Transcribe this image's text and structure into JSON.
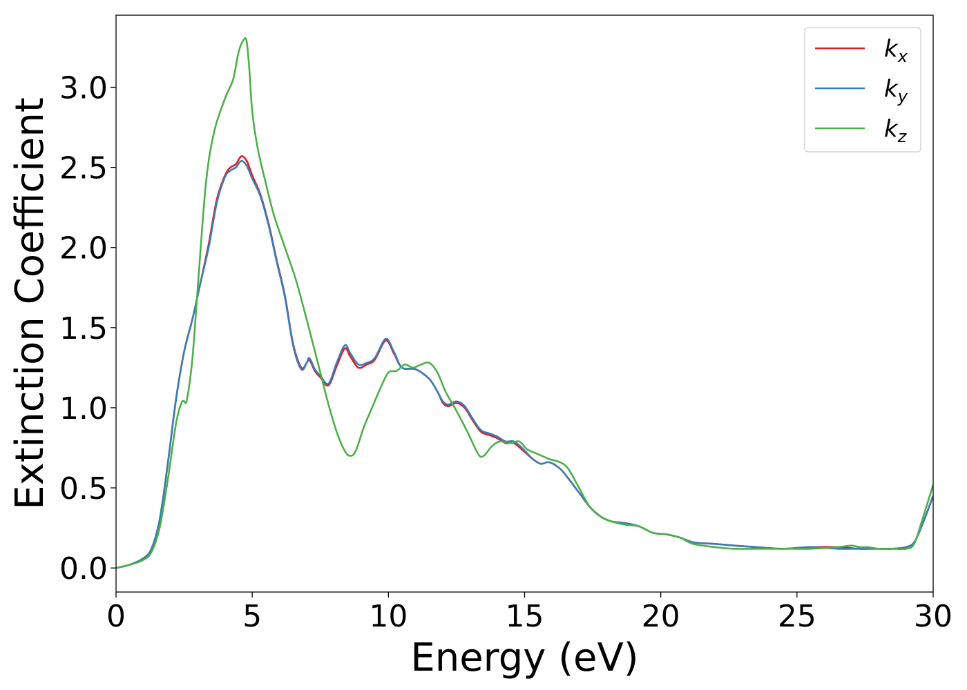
{
  "chart_data": {
    "type": "line",
    "title": "",
    "xlabel": "Energy (eV)",
    "ylabel": "Extinction Coefficient",
    "xlim": [
      0,
      30
    ],
    "ylim": [
      -0.15,
      3.45
    ],
    "xticks": [
      0,
      5,
      10,
      15,
      20,
      25,
      30
    ],
    "yticks": [
      0.0,
      0.5,
      1.0,
      1.5,
      2.0,
      2.5,
      3.0
    ],
    "xtick_labels": [
      "0",
      "5",
      "10",
      "15",
      "20",
      "25",
      "30"
    ],
    "ytick_labels": [
      "0.0",
      "0.5",
      "1.0",
      "1.5",
      "2.0",
      "2.5",
      "3.0"
    ],
    "grid": false,
    "legend_position": "top-right",
    "series": [
      {
        "name": "k_x",
        "label_main": "k",
        "label_sub": "x",
        "color": "#e41a1c",
        "x": [
          0,
          0.5,
          1.0,
          1.3,
          1.6,
          1.9,
          2.2,
          2.5,
          2.8,
          3.1,
          3.4,
          3.7,
          4.0,
          4.2,
          4.4,
          4.6,
          4.8,
          5.0,
          5.3,
          5.6,
          5.9,
          6.2,
          6.5,
          6.8,
          7.0,
          7.1,
          7.3,
          7.5,
          7.8,
          8.1,
          8.4,
          8.6,
          8.9,
          9.2,
          9.5,
          9.9,
          10.2,
          10.5,
          11.0,
          11.5,
          11.8,
          12.0,
          12.2,
          12.5,
          12.8,
          13.1,
          13.4,
          13.7,
          14.0,
          14.3,
          14.6,
          14.9,
          15.3,
          15.6,
          15.9,
          16.3,
          16.6,
          17.0,
          17.4,
          17.8,
          18.2,
          18.7,
          19.2,
          19.7,
          20.2,
          20.7,
          21.2,
          22.0,
          22.7,
          23.5,
          24.5,
          25.5,
          26.5,
          27.3,
          28.0,
          28.5,
          29.0,
          29.3,
          29.6,
          30.0
        ],
        "values": [
          0.0,
          0.02,
          0.06,
          0.12,
          0.3,
          0.65,
          1.05,
          1.35,
          1.55,
          1.78,
          2.02,
          2.3,
          2.45,
          2.5,
          2.52,
          2.57,
          2.54,
          2.45,
          2.33,
          2.15,
          1.92,
          1.7,
          1.4,
          1.25,
          1.28,
          1.3,
          1.23,
          1.19,
          1.14,
          1.26,
          1.37,
          1.32,
          1.25,
          1.27,
          1.3,
          1.42,
          1.34,
          1.25,
          1.24,
          1.18,
          1.1,
          1.03,
          1.01,
          1.03,
          1.0,
          0.92,
          0.85,
          0.83,
          0.81,
          0.78,
          0.78,
          0.74,
          0.68,
          0.65,
          0.66,
          0.62,
          0.56,
          0.47,
          0.38,
          0.32,
          0.29,
          0.28,
          0.26,
          0.22,
          0.21,
          0.19,
          0.16,
          0.15,
          0.14,
          0.13,
          0.12,
          0.13,
          0.13,
          0.12,
          0.12,
          0.12,
          0.13,
          0.16,
          0.27,
          0.45
        ]
      },
      {
        "name": "k_y",
        "label_main": "k",
        "label_sub": "y",
        "color": "#377eb8",
        "x": [
          0,
          0.5,
          1.0,
          1.3,
          1.6,
          1.9,
          2.2,
          2.5,
          2.8,
          3.1,
          3.4,
          3.7,
          4.0,
          4.2,
          4.4,
          4.6,
          4.8,
          5.0,
          5.3,
          5.6,
          5.9,
          6.2,
          6.5,
          6.8,
          7.0,
          7.1,
          7.3,
          7.5,
          7.8,
          8.1,
          8.4,
          8.6,
          8.9,
          9.2,
          9.5,
          9.9,
          10.2,
          10.5,
          11.0,
          11.5,
          11.8,
          12.0,
          12.2,
          12.5,
          12.8,
          13.1,
          13.4,
          13.7,
          14.0,
          14.3,
          14.6,
          14.9,
          15.3,
          15.6,
          15.9,
          16.3,
          16.6,
          17.0,
          17.4,
          17.8,
          18.2,
          18.7,
          19.2,
          19.7,
          20.2,
          20.7,
          21.2,
          22.0,
          22.7,
          23.5,
          24.5,
          25.5,
          26.5,
          27.3,
          28.0,
          28.5,
          29.0,
          29.3,
          29.6,
          30.0
        ],
        "values": [
          0.0,
          0.02,
          0.06,
          0.12,
          0.3,
          0.65,
          1.05,
          1.35,
          1.55,
          1.78,
          2.0,
          2.28,
          2.44,
          2.48,
          2.5,
          2.54,
          2.51,
          2.43,
          2.32,
          2.14,
          1.91,
          1.69,
          1.39,
          1.24,
          1.28,
          1.31,
          1.24,
          1.2,
          1.15,
          1.28,
          1.39,
          1.34,
          1.27,
          1.28,
          1.31,
          1.43,
          1.35,
          1.25,
          1.24,
          1.18,
          1.1,
          1.04,
          1.02,
          1.04,
          1.01,
          0.93,
          0.86,
          0.84,
          0.82,
          0.79,
          0.79,
          0.75,
          0.68,
          0.65,
          0.66,
          0.62,
          0.56,
          0.47,
          0.38,
          0.32,
          0.29,
          0.28,
          0.26,
          0.22,
          0.21,
          0.19,
          0.16,
          0.15,
          0.14,
          0.13,
          0.12,
          0.13,
          0.12,
          0.12,
          0.12,
          0.12,
          0.13,
          0.16,
          0.27,
          0.45
        ]
      },
      {
        "name": "k_z",
        "label_main": "k",
        "label_sub": "z",
        "color": "#4daf4a",
        "x": [
          0,
          0.5,
          1.0,
          1.3,
          1.6,
          1.9,
          2.2,
          2.4,
          2.5,
          2.6,
          2.8,
          3.0,
          3.3,
          3.6,
          4.0,
          4.3,
          4.5,
          4.7,
          4.8,
          4.9,
          5.0,
          5.2,
          5.5,
          5.8,
          6.2,
          6.6,
          7.0,
          7.5,
          7.8,
          8.1,
          8.4,
          8.6,
          8.8,
          9.1,
          9.4,
          9.7,
          10.0,
          10.3,
          10.6,
          10.9,
          11.2,
          11.5,
          11.8,
          12.1,
          12.5,
          12.9,
          13.3,
          13.5,
          13.8,
          14.1,
          14.5,
          14.8,
          15.1,
          15.5,
          15.9,
          16.3,
          16.6,
          17.0,
          17.4,
          17.8,
          18.2,
          18.7,
          19.2,
          19.7,
          20.2,
          20.7,
          21.2,
          22.0,
          22.7,
          23.5,
          24.5,
          25.5,
          26.5,
          27.0,
          27.3,
          27.6,
          28.0,
          28.5,
          29.0,
          29.3,
          29.6,
          30.0
        ],
        "values": [
          0.0,
          0.02,
          0.05,
          0.1,
          0.25,
          0.55,
          0.9,
          1.03,
          1.04,
          1.05,
          1.3,
          1.75,
          2.4,
          2.72,
          2.93,
          3.05,
          3.22,
          3.3,
          3.28,
          3.1,
          2.85,
          2.62,
          2.4,
          2.2,
          2.0,
          1.8,
          1.55,
          1.22,
          1.02,
          0.85,
          0.73,
          0.7,
          0.73,
          0.88,
          1.0,
          1.12,
          1.22,
          1.23,
          1.27,
          1.25,
          1.27,
          1.28,
          1.22,
          1.1,
          0.98,
          0.85,
          0.71,
          0.7,
          0.76,
          0.79,
          0.78,
          0.79,
          0.74,
          0.71,
          0.68,
          0.66,
          0.62,
          0.5,
          0.38,
          0.32,
          0.29,
          0.27,
          0.26,
          0.22,
          0.21,
          0.19,
          0.15,
          0.13,
          0.12,
          0.12,
          0.12,
          0.12,
          0.13,
          0.14,
          0.13,
          0.13,
          0.12,
          0.12,
          0.12,
          0.15,
          0.3,
          0.52
        ]
      }
    ]
  }
}
